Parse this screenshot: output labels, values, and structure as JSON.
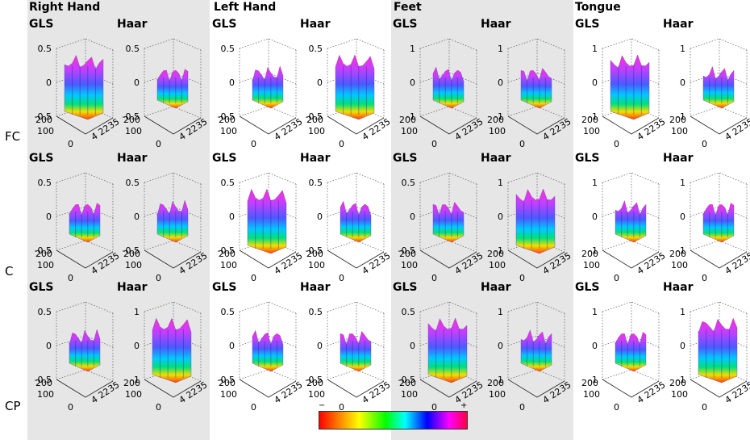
{
  "groups": [
    "Right Hand",
    "Left Hand",
    "Feet",
    "Tongue"
  ],
  "rows": [
    "FC",
    "C",
    "CP"
  ],
  "methods": [
    "GLS",
    "Haar"
  ],
  "colors": {
    "band": "#e6e6e6"
  },
  "axes": {
    "y_ticks": [
      "0",
      "100",
      "200"
    ],
    "x_ticks": [
      "4",
      "22",
      "35"
    ],
    "z_ticks": {
      "half": [
        "0.5",
        "0",
        "-0.5"
      ],
      "one": [
        "1",
        "0",
        "-1"
      ],
      "mixed": [
        "0.5",
        "0",
        "-0.5",
        "-1"
      ]
    }
  },
  "plots": [
    {
      "z": "half"
    },
    {
      "z": "half"
    },
    {
      "z": "half"
    },
    {
      "z": "half"
    },
    {
      "z": "one"
    },
    {
      "z": "one"
    },
    {
      "z": "one"
    },
    {
      "z": "one"
    },
    {
      "z": "half"
    },
    {
      "z": "half"
    },
    {
      "z": "half"
    },
    {
      "z": "half"
    },
    {
      "z": "half"
    },
    {
      "z": "one"
    },
    {
      "z": "one"
    },
    {
      "z": "one"
    },
    {
      "z": "half"
    },
    {
      "z": "one"
    },
    {
      "z": "half"
    },
    {
      "z": "half"
    },
    {
      "z": "half"
    },
    {
      "z": "one"
    },
    {
      "z": "one"
    },
    {
      "z": "one"
    }
  ],
  "colorbar": {
    "min_label": "−",
    "max_label": "+",
    "colors": [
      "#ff0000",
      "#ffff00",
      "#00ff00",
      "#00ffff",
      "#0000ff",
      "#ff00ff"
    ]
  }
}
